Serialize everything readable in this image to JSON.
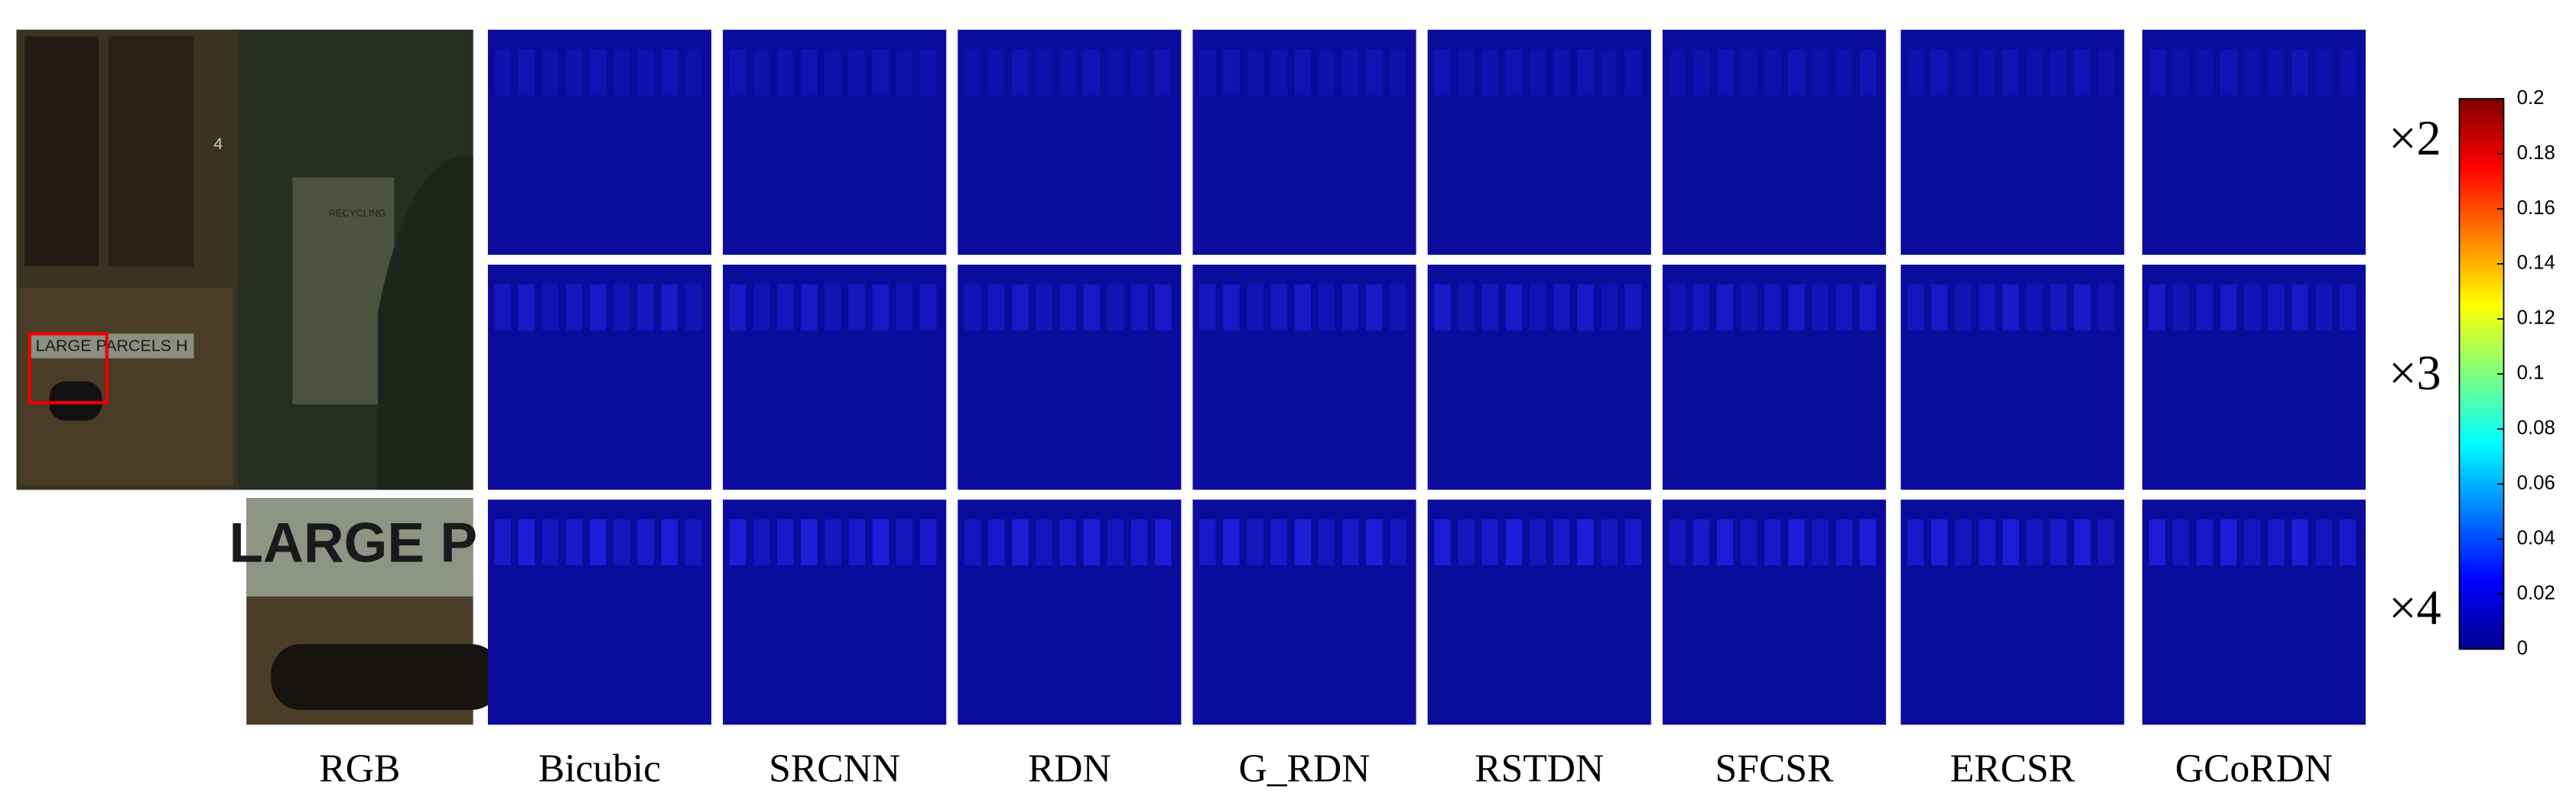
{
  "figure": {
    "photo": {
      "sign": "LARGE PARCELS H",
      "number": "4",
      "poster": "RECYCLING",
      "zoom_text": "LARGE P"
    },
    "columns": [
      "RGB",
      "Bicubic",
      "SRCNN",
      "RDN",
      "G_RDN",
      "RSTDN",
      "SFCSR",
      "ERCSR",
      "GCoRDN"
    ],
    "rows": [
      "×2",
      "×3",
      "×4"
    ],
    "colorbar": {
      "lim": [
        0,
        0.2
      ],
      "ticks": [
        0,
        0.02,
        0.04,
        0.06,
        0.08,
        0.1,
        0.12,
        0.14,
        0.16,
        0.18,
        0.2
      ]
    }
  }
}
